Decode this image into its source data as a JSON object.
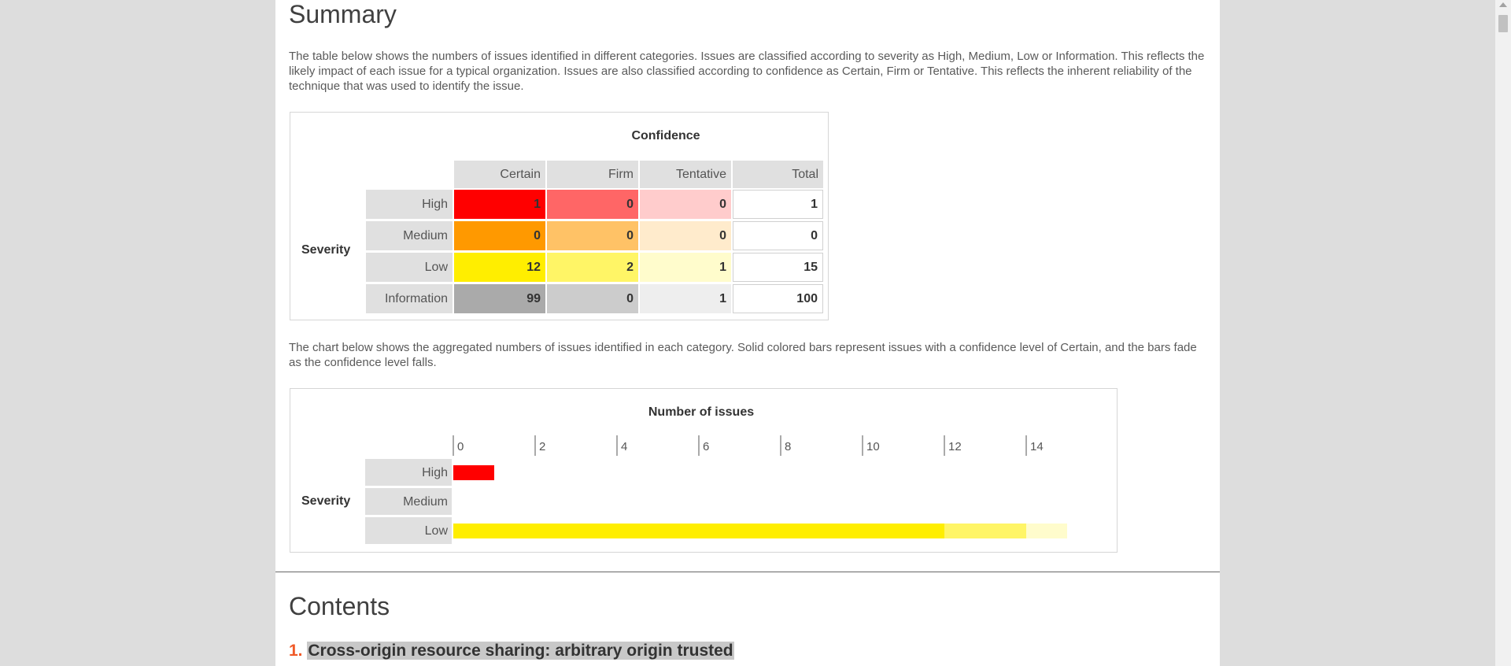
{
  "summary": {
    "heading": "Summary",
    "intro": "The table below shows the numbers of issues identified in different categories. Issues are classified according to severity as High, Medium, Low or Information. This reflects the likely impact of each issue for a typical organization. Issues are also classified according to confidence as Certain, Firm or Tentative. This reflects the inherent reliability of the technique that was used to identify the issue.",
    "table": {
      "title": "Confidence",
      "severity_label": "Severity",
      "columns": [
        "Certain",
        "Firm",
        "Tentative",
        "Total"
      ],
      "rows": [
        {
          "label": "High",
          "values": [
            "1",
            "0",
            "0"
          ],
          "total": "1",
          "colors": [
            "#ff0000",
            "#ff6666",
            "#ffcccc"
          ]
        },
        {
          "label": "Medium",
          "values": [
            "0",
            "0",
            "0"
          ],
          "total": "0",
          "colors": [
            "#ff9900",
            "#ffc266",
            "#ffebcc"
          ]
        },
        {
          "label": "Low",
          "values": [
            "12",
            "2",
            "1"
          ],
          "total": "15",
          "colors": [
            "#ffee00",
            "#fff566",
            "#fffccc"
          ]
        },
        {
          "label": "Information",
          "values": [
            "99",
            "0",
            "1"
          ],
          "total": "100",
          "colors": [
            "#aaaaaa",
            "#cccccc",
            "#eeeeee"
          ]
        }
      ]
    },
    "chart_intro": "The chart below shows the aggregated numbers of issues identified in each category. Solid colored bars represent issues with a confidence level of Certain, and the bars fade as the confidence level falls."
  },
  "chart_data": {
    "type": "bar",
    "orientation": "horizontal",
    "stacked": true,
    "title": "Number of issues",
    "ylabel": "Severity",
    "xlabel": "",
    "categories": [
      "High",
      "Medium",
      "Low"
    ],
    "x_ticks": [
      0,
      2,
      4,
      6,
      8,
      10,
      12,
      14
    ],
    "xlim": [
      0,
      15
    ],
    "series": [
      {
        "name": "Certain",
        "values": [
          1,
          0,
          12
        ],
        "colors": [
          "#ff0000",
          "#ff9900",
          "#ffee00"
        ]
      },
      {
        "name": "Firm",
        "values": [
          0,
          0,
          2
        ],
        "colors": [
          "#ff6666",
          "#ffc266",
          "#fff566"
        ]
      },
      {
        "name": "Tentative",
        "values": [
          0,
          0,
          1
        ],
        "colors": [
          "#ffcccc",
          "#ffebcc",
          "#fffccc"
        ]
      }
    ]
  },
  "contents": {
    "heading": "Contents",
    "items": [
      {
        "index": "1.",
        "title": "Cross-origin resource sharing: arbitrary origin trusted"
      }
    ]
  }
}
